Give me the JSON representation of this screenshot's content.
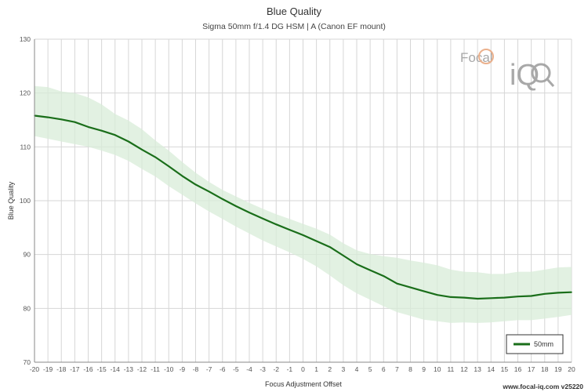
{
  "chart_data": {
    "type": "line",
    "title": "Blue Quality",
    "subtitle": "Sigma 50mm f/1.4 DG HSM | A (Canon EF mount)",
    "xlabel": "Focus Adjustment Offset",
    "ylabel": "Blue Quality",
    "xlim": [
      -20,
      20
    ],
    "ylim": [
      70,
      130
    ],
    "x_ticks": [
      -20,
      -19,
      -18,
      -17,
      -16,
      -15,
      -14,
      -13,
      -12,
      -11,
      -10,
      -9,
      -8,
      -7,
      -6,
      -5,
      -4,
      -3,
      -2,
      -1,
      0,
      1,
      2,
      3,
      4,
      5,
      6,
      7,
      8,
      9,
      10,
      11,
      12,
      13,
      14,
      15,
      16,
      17,
      18,
      19,
      20
    ],
    "y_ticks": [
      70,
      80,
      90,
      100,
      110,
      120,
      130
    ],
    "grid": true,
    "legend_position": "bottom-right",
    "x": [
      -20,
      -19,
      -18,
      -17,
      -16,
      -15,
      -14,
      -13,
      -12,
      -11,
      -10,
      -9,
      -8,
      -7,
      -6,
      -5,
      -4,
      -3,
      -2,
      -1,
      0,
      1,
      2,
      3,
      4,
      5,
      6,
      7,
      8,
      9,
      10,
      11,
      12,
      13,
      14,
      15,
      16,
      17,
      18,
      19,
      20
    ],
    "series": [
      {
        "name": "50mm",
        "color": "#1a6e1a",
        "band_color": "#d8ecd8",
        "values": [
          115.8,
          115.5,
          115.1,
          114.6,
          113.7,
          113.0,
          112.2,
          111.0,
          109.5,
          108.1,
          106.4,
          104.6,
          103.0,
          101.7,
          100.3,
          99.0,
          97.8,
          96.7,
          95.6,
          94.6,
          93.6,
          92.5,
          91.4,
          89.8,
          88.2,
          87.1,
          86.0,
          84.6,
          83.9,
          83.2,
          82.5,
          82.1,
          82.0,
          81.8,
          81.9,
          82.0,
          82.2,
          82.3,
          82.7,
          82.9,
          83.0
        ],
        "upper": [
          121.3,
          121.1,
          120.3,
          120.0,
          119.2,
          117.9,
          116.1,
          114.9,
          113.3,
          111.2,
          109.3,
          107.2,
          105.2,
          103.5,
          102.0,
          100.8,
          99.6,
          98.5,
          97.5,
          96.6,
          95.7,
          94.8,
          93.7,
          92.1,
          90.8,
          90.1,
          89.7,
          89.4,
          88.9,
          88.5,
          88.0,
          87.2,
          86.8,
          86.7,
          86.4,
          86.4,
          86.8,
          86.8,
          87.2,
          87.6,
          87.7
        ],
        "lower": [
          112.0,
          111.5,
          111.0,
          110.5,
          110.0,
          109.3,
          108.5,
          107.4,
          105.9,
          104.5,
          102.7,
          101.1,
          99.5,
          98.0,
          96.6,
          95.2,
          93.9,
          92.6,
          91.5,
          90.4,
          89.2,
          87.8,
          86.1,
          84.3,
          82.8,
          81.6,
          80.4,
          79.3,
          78.6,
          77.9,
          77.6,
          77.3,
          77.4,
          77.3,
          77.4,
          77.6,
          77.8,
          77.8,
          78.1,
          78.4,
          78.8
        ]
      }
    ]
  },
  "logo": {
    "line1": "Focal",
    "line2": "iQ"
  },
  "footer": "www.focal-iq.com  v25220"
}
